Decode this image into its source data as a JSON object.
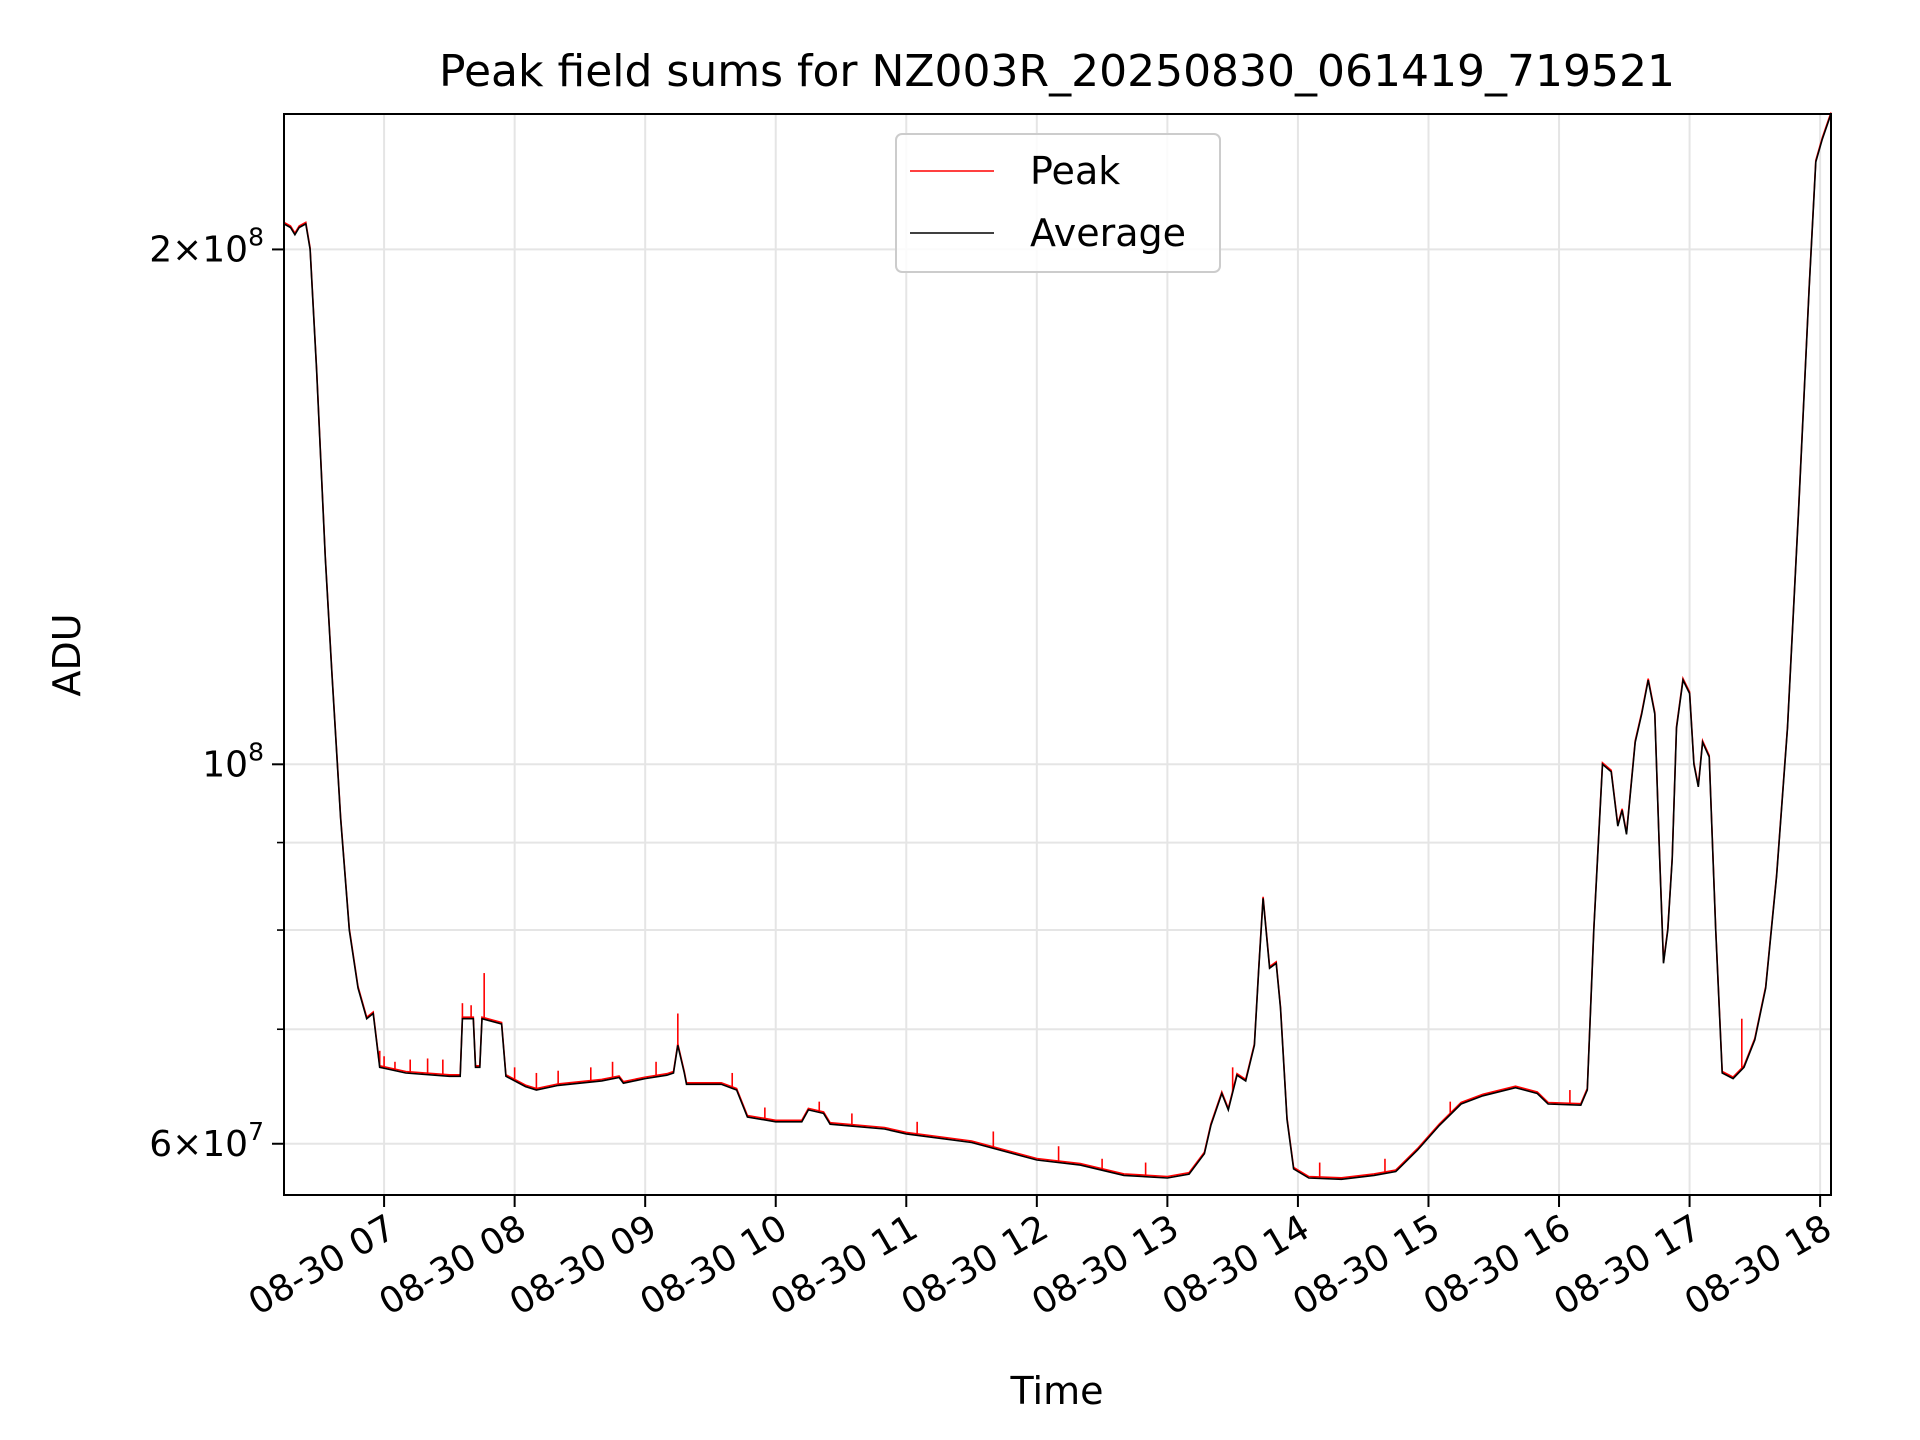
{
  "chart_data": {
    "type": "line",
    "title": "Peak field sums for NZ003R_20250830_061419_719521",
    "xlabel": "Time",
    "ylabel": "ADU",
    "yscale": "log",
    "ylim": [
      56000000,
      240000000
    ],
    "xlim": [
      "2025-08-30 06:14",
      "2025-08-30 18:05"
    ],
    "grid": true,
    "legend_position": "top-center",
    "colors": {
      "Peak": "#ff0000",
      "Average": "#000000",
      "grid": "#e5e5e5"
    },
    "y_ticks": [
      {
        "value": 200000000,
        "mantissa": "2",
        "exponent": "8"
      },
      {
        "value": 100000000,
        "mantissa": "",
        "exponent": "8"
      },
      {
        "value": 60000000,
        "mantissa": "6",
        "exponent": "7"
      }
    ],
    "y_minor_ticks": [
      70000000,
      80000000,
      90000000
    ],
    "x_ticks": [
      {
        "time": "2025-08-30 07:00",
        "label": "08-30 07"
      },
      {
        "time": "2025-08-30 08:00",
        "label": "08-30 08"
      },
      {
        "time": "2025-08-30 09:00",
        "label": "08-30 09"
      },
      {
        "time": "2025-08-30 10:00",
        "label": "08-30 10"
      },
      {
        "time": "2025-08-30 11:00",
        "label": "08-30 11"
      },
      {
        "time": "2025-08-30 12:00",
        "label": "08-30 12"
      },
      {
        "time": "2025-08-30 13:00",
        "label": "08-30 13"
      },
      {
        "time": "2025-08-30 14:00",
        "label": "08-30 14"
      },
      {
        "time": "2025-08-30 15:00",
        "label": "08-30 15"
      },
      {
        "time": "2025-08-30 16:00",
        "label": "08-30 16"
      },
      {
        "time": "2025-08-30 17:00",
        "label": "08-30 17"
      },
      {
        "time": "2025-08-30 18:00",
        "label": "08-30 18"
      }
    ],
    "series": [
      {
        "name": "Average",
        "points": [
          [
            "2025-08-30 06:14",
            207000000
          ],
          [
            "2025-08-30 06:17",
            206000000
          ],
          [
            "2025-08-30 06:19",
            204000000
          ],
          [
            "2025-08-30 06:21",
            206000000
          ],
          [
            "2025-08-30 06:24",
            207000000
          ],
          [
            "2025-08-30 06:26",
            200000000
          ],
          [
            "2025-08-30 06:29",
            170000000
          ],
          [
            "2025-08-30 06:33",
            132000000
          ],
          [
            "2025-08-30 06:36",
            113000000
          ],
          [
            "2025-08-30 06:40",
            93000000
          ],
          [
            "2025-08-30 06:44",
            80000000
          ],
          [
            "2025-08-30 06:48",
            74000000
          ],
          [
            "2025-08-30 06:52",
            71000000
          ],
          [
            "2025-08-30 06:55",
            71500000
          ],
          [
            "2025-08-30 06:58",
            66500000
          ],
          [
            "2025-08-30 07:10",
            66000000
          ],
          [
            "2025-08-30 07:30",
            65700000
          ],
          [
            "2025-08-30 07:35",
            65700000
          ],
          [
            "2025-08-30 07:36",
            71000000
          ],
          [
            "2025-08-30 07:41",
            71000000
          ],
          [
            "2025-08-30 07:42",
            66500000
          ],
          [
            "2025-08-30 07:44",
            66500000
          ],
          [
            "2025-08-30 07:45",
            71000000
          ],
          [
            "2025-08-30 07:54",
            70500000
          ],
          [
            "2025-08-30 07:56",
            65700000
          ],
          [
            "2025-08-30 08:05",
            64800000
          ],
          [
            "2025-08-30 08:10",
            64500000
          ],
          [
            "2025-08-30 08:20",
            64900000
          ],
          [
            "2025-08-30 08:30",
            65100000
          ],
          [
            "2025-08-30 08:40",
            65300000
          ],
          [
            "2025-08-30 08:48",
            65600000
          ],
          [
            "2025-08-30 08:50",
            65100000
          ],
          [
            "2025-08-30 09:00",
            65500000
          ],
          [
            "2025-08-30 09:10",
            65800000
          ],
          [
            "2025-08-30 09:13",
            66000000
          ],
          [
            "2025-08-30 09:15",
            68500000
          ],
          [
            "2025-08-30 09:18",
            66000000
          ],
          [
            "2025-08-30 09:19",
            65000000
          ],
          [
            "2025-08-30 09:35",
            65000000
          ],
          [
            "2025-08-30 09:42",
            64500000
          ],
          [
            "2025-08-30 09:47",
            62200000
          ],
          [
            "2025-08-30 10:00",
            61800000
          ],
          [
            "2025-08-30 10:12",
            61800000
          ],
          [
            "2025-08-30 10:15",
            62800000
          ],
          [
            "2025-08-30 10:22",
            62500000
          ],
          [
            "2025-08-30 10:25",
            61600000
          ],
          [
            "2025-08-30 10:50",
            61200000
          ],
          [
            "2025-08-30 11:00",
            60800000
          ],
          [
            "2025-08-30 11:30",
            60100000
          ],
          [
            "2025-08-30 12:00",
            58700000
          ],
          [
            "2025-08-30 12:20",
            58300000
          ],
          [
            "2025-08-30 12:40",
            57500000
          ],
          [
            "2025-08-30 13:00",
            57300000
          ],
          [
            "2025-08-30 13:10",
            57600000
          ],
          [
            "2025-08-30 13:17",
            59200000
          ],
          [
            "2025-08-30 13:20",
            61500000
          ],
          [
            "2025-08-30 13:25",
            64200000
          ],
          [
            "2025-08-30 13:28",
            62800000
          ],
          [
            "2025-08-30 13:32",
            65800000
          ],
          [
            "2025-08-30 13:36",
            65300000
          ],
          [
            "2025-08-30 13:40",
            68500000
          ],
          [
            "2025-08-30 13:42",
            76000000
          ],
          [
            "2025-08-30 13:44",
            83500000
          ],
          [
            "2025-08-30 13:47",
            76000000
          ],
          [
            "2025-08-30 13:50",
            76500000
          ],
          [
            "2025-08-30 13:52",
            72000000
          ],
          [
            "2025-08-30 13:55",
            62000000
          ],
          [
            "2025-08-30 13:58",
            58000000
          ],
          [
            "2025-08-30 14:05",
            57300000
          ],
          [
            "2025-08-30 14:20",
            57200000
          ],
          [
            "2025-08-30 14:35",
            57500000
          ],
          [
            "2025-08-30 14:45",
            57800000
          ],
          [
            "2025-08-30 14:55",
            59500000
          ],
          [
            "2025-08-30 15:05",
            61500000
          ],
          [
            "2025-08-30 15:15",
            63300000
          ],
          [
            "2025-08-30 15:25",
            64000000
          ],
          [
            "2025-08-30 15:40",
            64700000
          ],
          [
            "2025-08-30 15:50",
            64200000
          ],
          [
            "2025-08-30 15:55",
            63300000
          ],
          [
            "2025-08-30 16:10",
            63200000
          ],
          [
            "2025-08-30 16:13",
            64500000
          ],
          [
            "2025-08-30 16:16",
            80000000
          ],
          [
            "2025-08-30 16:20",
            100000000
          ],
          [
            "2025-08-30 16:24",
            99000000
          ],
          [
            "2025-08-30 16:27",
            92000000
          ],
          [
            "2025-08-30 16:29",
            94000000
          ],
          [
            "2025-08-30 16:31",
            91000000
          ],
          [
            "2025-08-30 16:35",
            103000000
          ],
          [
            "2025-08-30 16:38",
            107000000
          ],
          [
            "2025-08-30 16:41",
            112000000
          ],
          [
            "2025-08-30 16:44",
            107000000
          ],
          [
            "2025-08-30 16:46",
            90000000
          ],
          [
            "2025-08-30 16:48",
            76500000
          ],
          [
            "2025-08-30 16:50",
            80000000
          ],
          [
            "2025-08-30 16:52",
            88000000
          ],
          [
            "2025-08-30 16:54",
            105000000
          ],
          [
            "2025-08-30 16:57",
            112000000
          ],
          [
            "2025-08-30 17:00",
            110000000
          ],
          [
            "2025-08-30 17:02",
            100000000
          ],
          [
            "2025-08-30 17:04",
            97000000
          ],
          [
            "2025-08-30 17:06",
            103000000
          ],
          [
            "2025-08-30 17:09",
            101000000
          ],
          [
            "2025-08-30 17:12",
            80000000
          ],
          [
            "2025-08-30 17:15",
            66000000
          ],
          [
            "2025-08-30 17:20",
            65500000
          ],
          [
            "2025-08-30 17:25",
            66500000
          ],
          [
            "2025-08-30 17:30",
            69000000
          ],
          [
            "2025-08-30 17:35",
            74000000
          ],
          [
            "2025-08-30 17:40",
            86000000
          ],
          [
            "2025-08-30 17:45",
            105000000
          ],
          [
            "2025-08-30 17:50",
            140000000
          ],
          [
            "2025-08-30 17:55",
            190000000
          ],
          [
            "2025-08-30 17:58",
            225000000
          ],
          [
            "2025-08-30 18:01",
            232000000
          ],
          [
            "2025-08-30 18:05",
            240000000
          ]
        ]
      },
      {
        "name": "Peak",
        "spikes": [
          [
            "2025-08-30 06:58",
            68000000
          ],
          [
            "2025-08-30 07:00",
            67500000
          ],
          [
            "2025-08-30 07:05",
            67000000
          ],
          [
            "2025-08-30 07:12",
            67200000
          ],
          [
            "2025-08-30 07:20",
            67300000
          ],
          [
            "2025-08-30 07:27",
            67200000
          ],
          [
            "2025-08-30 07:36",
            72500000
          ],
          [
            "2025-08-30 07:40",
            72300000
          ],
          [
            "2025-08-30 07:46",
            75500000
          ],
          [
            "2025-08-30 08:00",
            66500000
          ],
          [
            "2025-08-30 08:10",
            66000000
          ],
          [
            "2025-08-30 08:20",
            66200000
          ],
          [
            "2025-08-30 08:35",
            66500000
          ],
          [
            "2025-08-30 08:45",
            67000000
          ],
          [
            "2025-08-30 09:05",
            67000000
          ],
          [
            "2025-08-30 09:15",
            71500000
          ],
          [
            "2025-08-30 09:40",
            66000000
          ],
          [
            "2025-08-30 09:55",
            63000000
          ],
          [
            "2025-08-30 10:20",
            63500000
          ],
          [
            "2025-08-30 10:35",
            62500000
          ],
          [
            "2025-08-30 11:05",
            61800000
          ],
          [
            "2025-08-30 11:40",
            61000000
          ],
          [
            "2025-08-30 12:10",
            59800000
          ],
          [
            "2025-08-30 12:30",
            58800000
          ],
          [
            "2025-08-30 12:50",
            58500000
          ],
          [
            "2025-08-30 13:30",
            66500000
          ],
          [
            "2025-08-30 14:10",
            58500000
          ],
          [
            "2025-08-30 14:40",
            58800000
          ],
          [
            "2025-08-30 15:10",
            63500000
          ],
          [
            "2025-08-30 16:05",
            64500000
          ],
          [
            "2025-08-30 17:24",
            71000000
          ]
        ]
      }
    ]
  }
}
